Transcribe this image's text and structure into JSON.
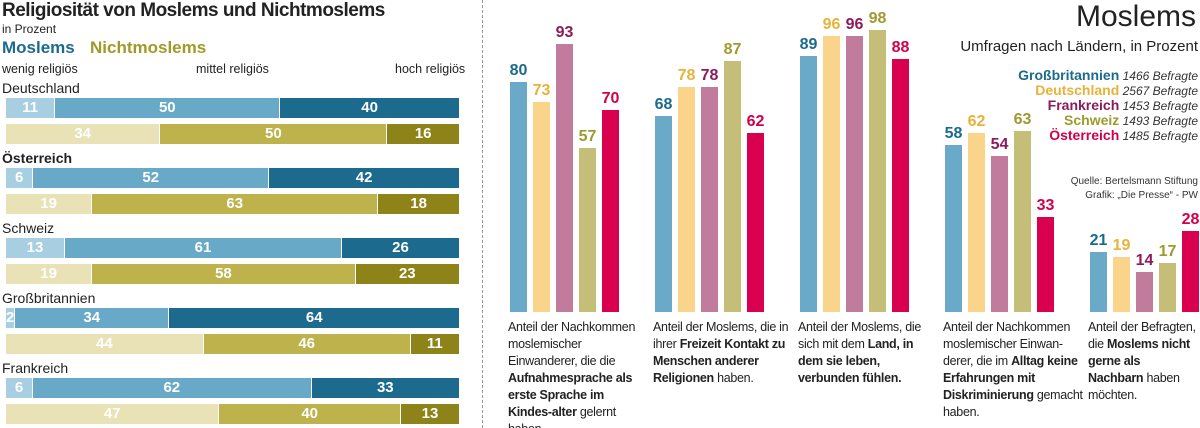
{
  "chart_data": [
    {
      "type": "bar",
      "orientation": "horizontal-stacked",
      "title": "Religiosität von Moslems und Nichtmoslems",
      "subtitle": "in Prozent",
      "groups": [
        "Moslems",
        "Nichtmoslems"
      ],
      "levels": [
        "wenig religiös",
        "mittel religiös",
        "hoch religiös"
      ],
      "countries": [
        {
          "name": "Deutschland",
          "moslems": [
            11,
            50,
            40
          ],
          "nichtmoslems": [
            34,
            50,
            16
          ]
        },
        {
          "name": "Österreich",
          "moslems": [
            6,
            52,
            42
          ],
          "nichtmoslems": [
            19,
            63,
            18
          ]
        },
        {
          "name": "Schweiz",
          "moslems": [
            13,
            61,
            26
          ],
          "nichtmoslems": [
            19,
            58,
            23
          ]
        },
        {
          "name": "Großbritannien",
          "moslems": [
            2,
            34,
            64
          ],
          "nichtmoslems": [
            44,
            46,
            11
          ]
        },
        {
          "name": "Frankreich",
          "moslems": [
            6,
            62,
            33
          ],
          "nichtmoslems": [
            47,
            40,
            13
          ]
        }
      ],
      "colors": {
        "moslems": [
          "#a8cfe1",
          "#68a9c8",
          "#1d6a8f"
        ],
        "nichtmoslems": [
          "#e9e2b6",
          "#bdb24c",
          "#8e8318"
        ]
      }
    },
    {
      "type": "bar",
      "title": "Moslems",
      "subtitle": "Umfragen nach Ländern, in Prozent",
      "series": [
        {
          "name": "Großbritannien",
          "respondents": "1466 Befragte",
          "color": "#6aaac8",
          "label_color": "#1b6a8c",
          "values": [
            80,
            68,
            89,
            58,
            21
          ]
        },
        {
          "name": "Deutschland",
          "respondents": "2567 Befragte",
          "color": "#fbd48c",
          "label_color": "#e8b23a",
          "values": [
            73,
            78,
            96,
            62,
            19
          ]
        },
        {
          "name": "Frankreich",
          "respondents": "1453 Befragte",
          "color": "#c07b9d",
          "label_color": "#8c1b5c",
          "values": [
            93,
            78,
            96,
            54,
            14
          ]
        },
        {
          "name": "Schweiz",
          "respondents": "1493 Befragte",
          "color": "#c5be78",
          "label_color": "#9e9a2e",
          "values": [
            57,
            87,
            98,
            63,
            17
          ]
        },
        {
          "name": "Österreich",
          "respondents": "1485 Befragte",
          "color": "#d9004f",
          "label_color": "#d0004a",
          "values": [
            70,
            62,
            88,
            33,
            28
          ]
        }
      ],
      "categories": [
        [
          "Anteil der Nachkommen moslemischer Einwanderer, die die ",
          {
            "b": "Aufnahmesprache als erste Sprache im Kindes-alter"
          },
          " gelernt haben."
        ],
        [
          "Anteil der Moslems, die in ihrer ",
          {
            "b": "Freizeit Kontakt zu Menschen anderer Religionen"
          },
          " haben."
        ],
        [
          "Anteil der Moslems, die sich mit dem ",
          {
            "b": "Land, in dem sie leben, verbunden fühlen."
          }
        ],
        [
          "Anteil der Nachkommen moslemischer Einwan-derer, die im ",
          {
            "b": "Alltag keine Erfahrungen mit Diskriminierung"
          },
          " gemacht haben."
        ],
        [
          "Anteil der Befragten, die ",
          {
            "b": "Moslems nicht gerne als Nachbarn"
          },
          " haben möchten."
        ]
      ],
      "source": "Quelle: Bertelsmann Stiftung",
      "credit": "Grafik: „Die Presse“ - PW"
    }
  ]
}
